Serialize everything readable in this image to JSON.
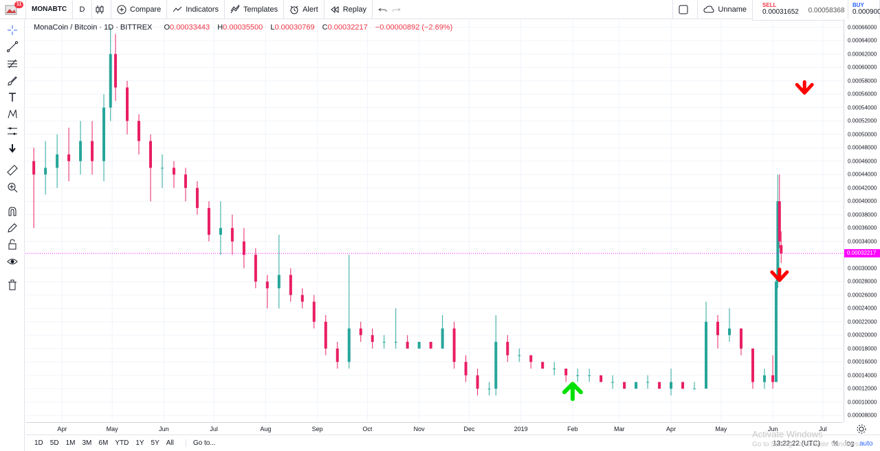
{
  "toolbar": {
    "notifications": "11",
    "symbol": "MONABTC",
    "interval": "D",
    "compare": "Compare",
    "indicators": "Indicators",
    "templates": "Templates",
    "alert": "Alert",
    "replay": "Replay",
    "layout_name": "Unname"
  },
  "trade": {
    "sell_label": "SELL",
    "sell_price": "0.00031652",
    "spread": "0.00058368",
    "buy_label": "BUY",
    "buy_price": "0.000900"
  },
  "legend": {
    "symbol_line": "MonaCoin / Bitcoin · 1D · BITTREX",
    "open_key": "O",
    "open": "0.00033443",
    "high_key": "H",
    "high": "0.00035500",
    "low_key": "L",
    "low": "0.00030769",
    "close_key": "C",
    "close": "0.00032217",
    "change": "−0.00000892 (−2.69%)"
  },
  "price_axis": {
    "ticks": [
      "0.00066000",
      "0.00064000",
      "0.00062000",
      "0.00060000",
      "0.00058000",
      "0.00056000",
      "0.00054000",
      "0.00052000",
      "0.00050000",
      "0.00048000",
      "0.00046000",
      "0.00044000",
      "0.00042000",
      "0.00040000",
      "0.00038000",
      "0.00036000",
      "0.00034000",
      "0.00030000",
      "0.00028000",
      "0.00026000",
      "0.00024000",
      "0.00022000",
      "0.00020000",
      "0.00018000",
      "0.00016000",
      "0.00014000",
      "0.00012000",
      "0.00010000",
      "0.00008000"
    ],
    "last_price": "0.00032217"
  },
  "time_axis": {
    "ticks": [
      "Apr",
      "May",
      "Jun",
      "Jul",
      "Aug",
      "Sep",
      "Oct",
      "Nov",
      "Dec",
      "2019",
      "Feb",
      "Mar",
      "Apr",
      "May",
      "Jun",
      "Jul"
    ]
  },
  "bottom": {
    "ranges": [
      "1D",
      "5D",
      "1M",
      "3M",
      "6M",
      "YTD",
      "1Y",
      "5Y",
      "All"
    ],
    "goto": "Go to...",
    "clock": "13:22:22 (UTC)",
    "pct": "%",
    "log": "log",
    "auto": "auto"
  },
  "watermark": {
    "title": "Activate Windows",
    "subtitle": "Go to Settings to activate Windows."
  },
  "colors": {
    "up": "#26a69a",
    "down": "#e91e63",
    "last_line": "#ff00ff",
    "arrow_down": "#ff0000",
    "arrow_up": "#00e000"
  },
  "chart_data": {
    "type": "candlestick",
    "symbol": "MONABTC",
    "interval": "1D",
    "ylim": [
      7e-05,
      0.000672
    ],
    "last": 0.00032217,
    "series": [
      {
        "t": "2018-03-15",
        "o": 0.00046,
        "h": 0.00048,
        "l": 0.00036,
        "c": 0.00044
      },
      {
        "t": "2018-03-22",
        "o": 0.00044,
        "h": 0.00049,
        "l": 0.00041,
        "c": 0.00045
      },
      {
        "t": "2018-03-29",
        "o": 0.00045,
        "h": 0.0005,
        "l": 0.00042,
        "c": 0.00047
      },
      {
        "t": "2018-04-05",
        "o": 0.00047,
        "h": 0.00051,
        "l": 0.00043,
        "c": 0.00046
      },
      {
        "t": "2018-04-12",
        "o": 0.00046,
        "h": 0.00052,
        "l": 0.00044,
        "c": 0.00049
      },
      {
        "t": "2018-04-19",
        "o": 0.00049,
        "h": 0.00052,
        "l": 0.00044,
        "c": 0.00046
      },
      {
        "t": "2018-04-26",
        "o": 0.00046,
        "h": 0.00056,
        "l": 0.00043,
        "c": 0.00054
      },
      {
        "t": "2018-04-30",
        "o": 0.00054,
        "h": 0.00066,
        "l": 0.00052,
        "c": 0.00062
      },
      {
        "t": "2018-05-03",
        "o": 0.00062,
        "h": 0.00065,
        "l": 0.00055,
        "c": 0.00057
      },
      {
        "t": "2018-05-10",
        "o": 0.00057,
        "h": 0.00058,
        "l": 0.0005,
        "c": 0.00052
      },
      {
        "t": "2018-05-17",
        "o": 0.00052,
        "h": 0.00053,
        "l": 0.00047,
        "c": 0.00049
      },
      {
        "t": "2018-05-24",
        "o": 0.00049,
        "h": 0.0005,
        "l": 0.0004,
        "c": 0.00045
      },
      {
        "t": "2018-05-31",
        "o": 0.00045,
        "h": 0.00047,
        "l": 0.00042,
        "c": 0.00045
      },
      {
        "t": "2018-06-07",
        "o": 0.00045,
        "h": 0.00046,
        "l": 0.00042,
        "c": 0.00044
      },
      {
        "t": "2018-06-14",
        "o": 0.00044,
        "h": 0.00045,
        "l": 0.0004,
        "c": 0.00042
      },
      {
        "t": "2018-06-21",
        "o": 0.00042,
        "h": 0.00043,
        "l": 0.00038,
        "c": 0.00039
      },
      {
        "t": "2018-06-28",
        "o": 0.00039,
        "h": 0.0004,
        "l": 0.00034,
        "c": 0.00035
      },
      {
        "t": "2018-07-05",
        "o": 0.00035,
        "h": 0.0004,
        "l": 0.00032,
        "c": 0.00036
      },
      {
        "t": "2018-07-12",
        "o": 0.00036,
        "h": 0.00038,
        "l": 0.00032,
        "c": 0.00034
      },
      {
        "t": "2018-07-19",
        "o": 0.00034,
        "h": 0.00036,
        "l": 0.0003,
        "c": 0.00032
      },
      {
        "t": "2018-07-26",
        "o": 0.00032,
        "h": 0.00033,
        "l": 0.00027,
        "c": 0.00028
      },
      {
        "t": "2018-08-02",
        "o": 0.00028,
        "h": 0.00029,
        "l": 0.00024,
        "c": 0.00027
      },
      {
        "t": "2018-08-09",
        "o": 0.00027,
        "h": 0.00035,
        "l": 0.00024,
        "c": 0.00029
      },
      {
        "t": "2018-08-16",
        "o": 0.00029,
        "h": 0.0003,
        "l": 0.00025,
        "c": 0.00026
      },
      {
        "t": "2018-08-23",
        "o": 0.00026,
        "h": 0.00027,
        "l": 0.00024,
        "c": 0.00025
      },
      {
        "t": "2018-08-30",
        "o": 0.00025,
        "h": 0.00026,
        "l": 0.00021,
        "c": 0.00022
      },
      {
        "t": "2018-09-06",
        "o": 0.00022,
        "h": 0.00023,
        "l": 0.00017,
        "c": 0.00018
      },
      {
        "t": "2018-09-13",
        "o": 0.00018,
        "h": 0.00019,
        "l": 0.00015,
        "c": 0.00016
      },
      {
        "t": "2018-09-20",
        "o": 0.00016,
        "h": 0.00032,
        "l": 0.00015,
        "c": 0.00021
      },
      {
        "t": "2018-09-27",
        "o": 0.00021,
        "h": 0.00022,
        "l": 0.00019,
        "c": 0.0002
      },
      {
        "t": "2018-10-04",
        "o": 0.0002,
        "h": 0.00021,
        "l": 0.00018,
        "c": 0.00019
      },
      {
        "t": "2018-10-11",
        "o": 0.00019,
        "h": 0.0002,
        "l": 0.00018,
        "c": 0.00019
      },
      {
        "t": "2018-10-18",
        "o": 0.00019,
        "h": 0.00024,
        "l": 0.00018,
        "c": 0.00019
      },
      {
        "t": "2018-10-25",
        "o": 0.00019,
        "h": 0.0002,
        "l": 0.00018,
        "c": 0.00018
      },
      {
        "t": "2018-11-01",
        "o": 0.00018,
        "h": 0.00019,
        "l": 0.00018,
        "c": 0.00019
      },
      {
        "t": "2018-11-08",
        "o": 0.00019,
        "h": 0.00019,
        "l": 0.00018,
        "c": 0.00018
      },
      {
        "t": "2018-11-15",
        "o": 0.00018,
        "h": 0.00023,
        "l": 0.00018,
        "c": 0.00021
      },
      {
        "t": "2018-11-22",
        "o": 0.00021,
        "h": 0.00022,
        "l": 0.00015,
        "c": 0.00016
      },
      {
        "t": "2018-11-29",
        "o": 0.00016,
        "h": 0.00017,
        "l": 0.00013,
        "c": 0.00014
      },
      {
        "t": "2018-12-06",
        "o": 0.00014,
        "h": 0.00015,
        "l": 0.00011,
        "c": 0.00012
      },
      {
        "t": "2018-12-13",
        "o": 0.00012,
        "h": 0.00013,
        "l": 0.00011,
        "c": 0.00012
      },
      {
        "t": "2018-12-17",
        "o": 0.00012,
        "h": 0.00023,
        "l": 0.00011,
        "c": 0.00019
      },
      {
        "t": "2018-12-24",
        "o": 0.00019,
        "h": 0.0002,
        "l": 0.00016,
        "c": 0.00017
      },
      {
        "t": "2018-12-31",
        "o": 0.00017,
        "h": 0.00018,
        "l": 0.00016,
        "c": 0.00017
      },
      {
        "t": "2019-01-07",
        "o": 0.00017,
        "h": 0.00017,
        "l": 0.00015,
        "c": 0.00016
      },
      {
        "t": "2019-01-14",
        "o": 0.00016,
        "h": 0.00016,
        "l": 0.00015,
        "c": 0.00015
      },
      {
        "t": "2019-01-21",
        "o": 0.00015,
        "h": 0.00016,
        "l": 0.00014,
        "c": 0.00015
      },
      {
        "t": "2019-01-28",
        "o": 0.00015,
        "h": 0.00015,
        "l": 0.00013,
        "c": 0.00014
      },
      {
        "t": "2019-02-04",
        "o": 0.00014,
        "h": 0.00015,
        "l": 0.00013,
        "c": 0.00014
      },
      {
        "t": "2019-02-11",
        "o": 0.00014,
        "h": 0.00015,
        "l": 0.00013,
        "c": 0.00014
      },
      {
        "t": "2019-02-18",
        "o": 0.00014,
        "h": 0.00014,
        "l": 0.00013,
        "c": 0.00013
      },
      {
        "t": "2019-02-25",
        "o": 0.00013,
        "h": 0.00014,
        "l": 0.00012,
        "c": 0.00013
      },
      {
        "t": "2019-03-04",
        "o": 0.00013,
        "h": 0.00013,
        "l": 0.00012,
        "c": 0.00012
      },
      {
        "t": "2019-03-11",
        "o": 0.00012,
        "h": 0.00013,
        "l": 0.00012,
        "c": 0.00013
      },
      {
        "t": "2019-03-18",
        "o": 0.00013,
        "h": 0.00014,
        "l": 0.00012,
        "c": 0.00013
      },
      {
        "t": "2019-03-25",
        "o": 0.00013,
        "h": 0.00013,
        "l": 0.00012,
        "c": 0.00012
      },
      {
        "t": "2019-04-01",
        "o": 0.00012,
        "h": 0.00015,
        "l": 0.00011,
        "c": 0.00013
      },
      {
        "t": "2019-04-08",
        "o": 0.00013,
        "h": 0.00013,
        "l": 0.00012,
        "c": 0.00012
      },
      {
        "t": "2019-04-15",
        "o": 0.00012,
        "h": 0.00013,
        "l": 0.00012,
        "c": 0.00012
      },
      {
        "t": "2019-04-22",
        "o": 0.00012,
        "h": 0.00025,
        "l": 0.00012,
        "c": 0.00022
      },
      {
        "t": "2019-04-29",
        "o": 0.00022,
        "h": 0.00023,
        "l": 0.00018,
        "c": 0.0002
      },
      {
        "t": "2019-05-06",
        "o": 0.0002,
        "h": 0.00024,
        "l": 0.00019,
        "c": 0.00021
      },
      {
        "t": "2019-05-13",
        "o": 0.00021,
        "h": 0.00021,
        "l": 0.00017,
        "c": 0.00018
      },
      {
        "t": "2019-05-20",
        "o": 0.00018,
        "h": 0.00018,
        "l": 0.00012,
        "c": 0.00013
      },
      {
        "t": "2019-05-27",
        "o": 0.00013,
        "h": 0.00015,
        "l": 0.00012,
        "c": 0.00014
      },
      {
        "t": "2019-06-01",
        "o": 0.00014,
        "h": 0.00017,
        "l": 0.00012,
        "c": 0.00013
      },
      {
        "t": "2019-06-03",
        "o": 0.00013,
        "h": 0.00029,
        "l": 0.00013,
        "c": 0.00028
      },
      {
        "t": "2019-06-04",
        "o": 0.00028,
        "h": 0.00044,
        "l": 0.00027,
        "c": 0.0004
      },
      {
        "t": "2019-06-05",
        "o": 0.0004,
        "h": 0.00044,
        "l": 0.00033,
        "c": 0.00034
      },
      {
        "t": "2019-06-06",
        "o": 0.00033443,
        "h": 0.000355,
        "l": 0.00030769,
        "c": 0.00032217
      }
    ],
    "markers": [
      {
        "type": "arrow-down",
        "t": "2019-06-20",
        "price": 0.000565
      },
      {
        "type": "arrow-down",
        "t": "2019-06-05",
        "price": 0.000285
      },
      {
        "type": "arrow-up",
        "t": "2019-02-01",
        "price": 0.000122
      }
    ]
  }
}
